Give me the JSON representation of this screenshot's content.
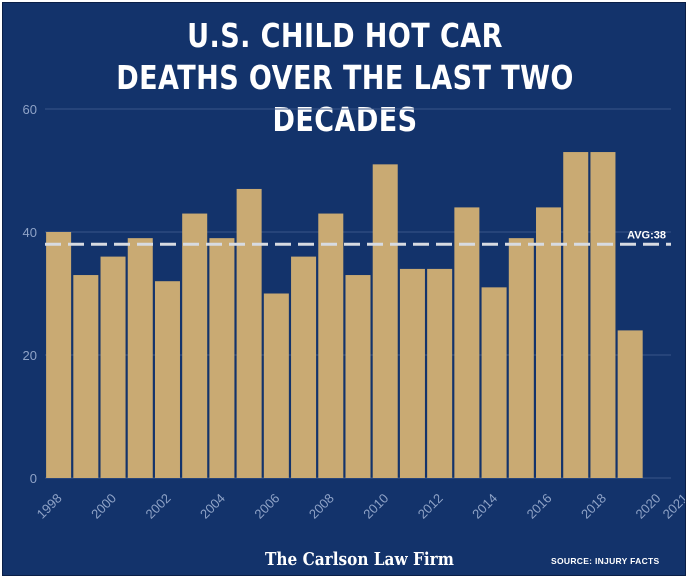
{
  "header": {
    "title_line1": "U.S. CHILD HOT CAR",
    "title_line2": "DEATHS OVER THE LAST TWO DECADES"
  },
  "footer": {
    "firm": "The Carlson Law Firm",
    "source": "SOURCE: INJURY FACTS"
  },
  "colors": {
    "background": "#13336b",
    "bar": "#c9aa73",
    "grid": "#3a5588",
    "axis_text": "#8fa3c7",
    "avg_line": "#d7dbe2"
  },
  "chart_data": {
    "type": "bar",
    "title": "U.S. CHILD HOT CAR DEATHS OVER THE LAST TWO DECADES",
    "x": [
      1998,
      1999,
      2000,
      2001,
      2002,
      2003,
      2004,
      2005,
      2006,
      2007,
      2008,
      2009,
      2010,
      2011,
      2012,
      2013,
      2014,
      2015,
      2016,
      2017,
      2018,
      2019,
      2020
    ],
    "values": [
      40,
      33,
      36,
      39,
      32,
      43,
      39,
      47,
      30,
      36,
      43,
      33,
      51,
      34,
      34,
      44,
      31,
      39,
      44,
      53,
      53,
      24,
      0
    ],
    "x_tick_labels": [
      "1998",
      "2000",
      "2002",
      "2004",
      "2006",
      "2008",
      "2010",
      "2012",
      "2014",
      "2016",
      "2018",
      "2020",
      "2021"
    ],
    "y_ticks": [
      0,
      20,
      40,
      60
    ],
    "ylim": [
      0,
      60
    ],
    "grid": true,
    "average": 38,
    "average_label": "AVG:38",
    "xlabel": "",
    "ylabel": ""
  }
}
